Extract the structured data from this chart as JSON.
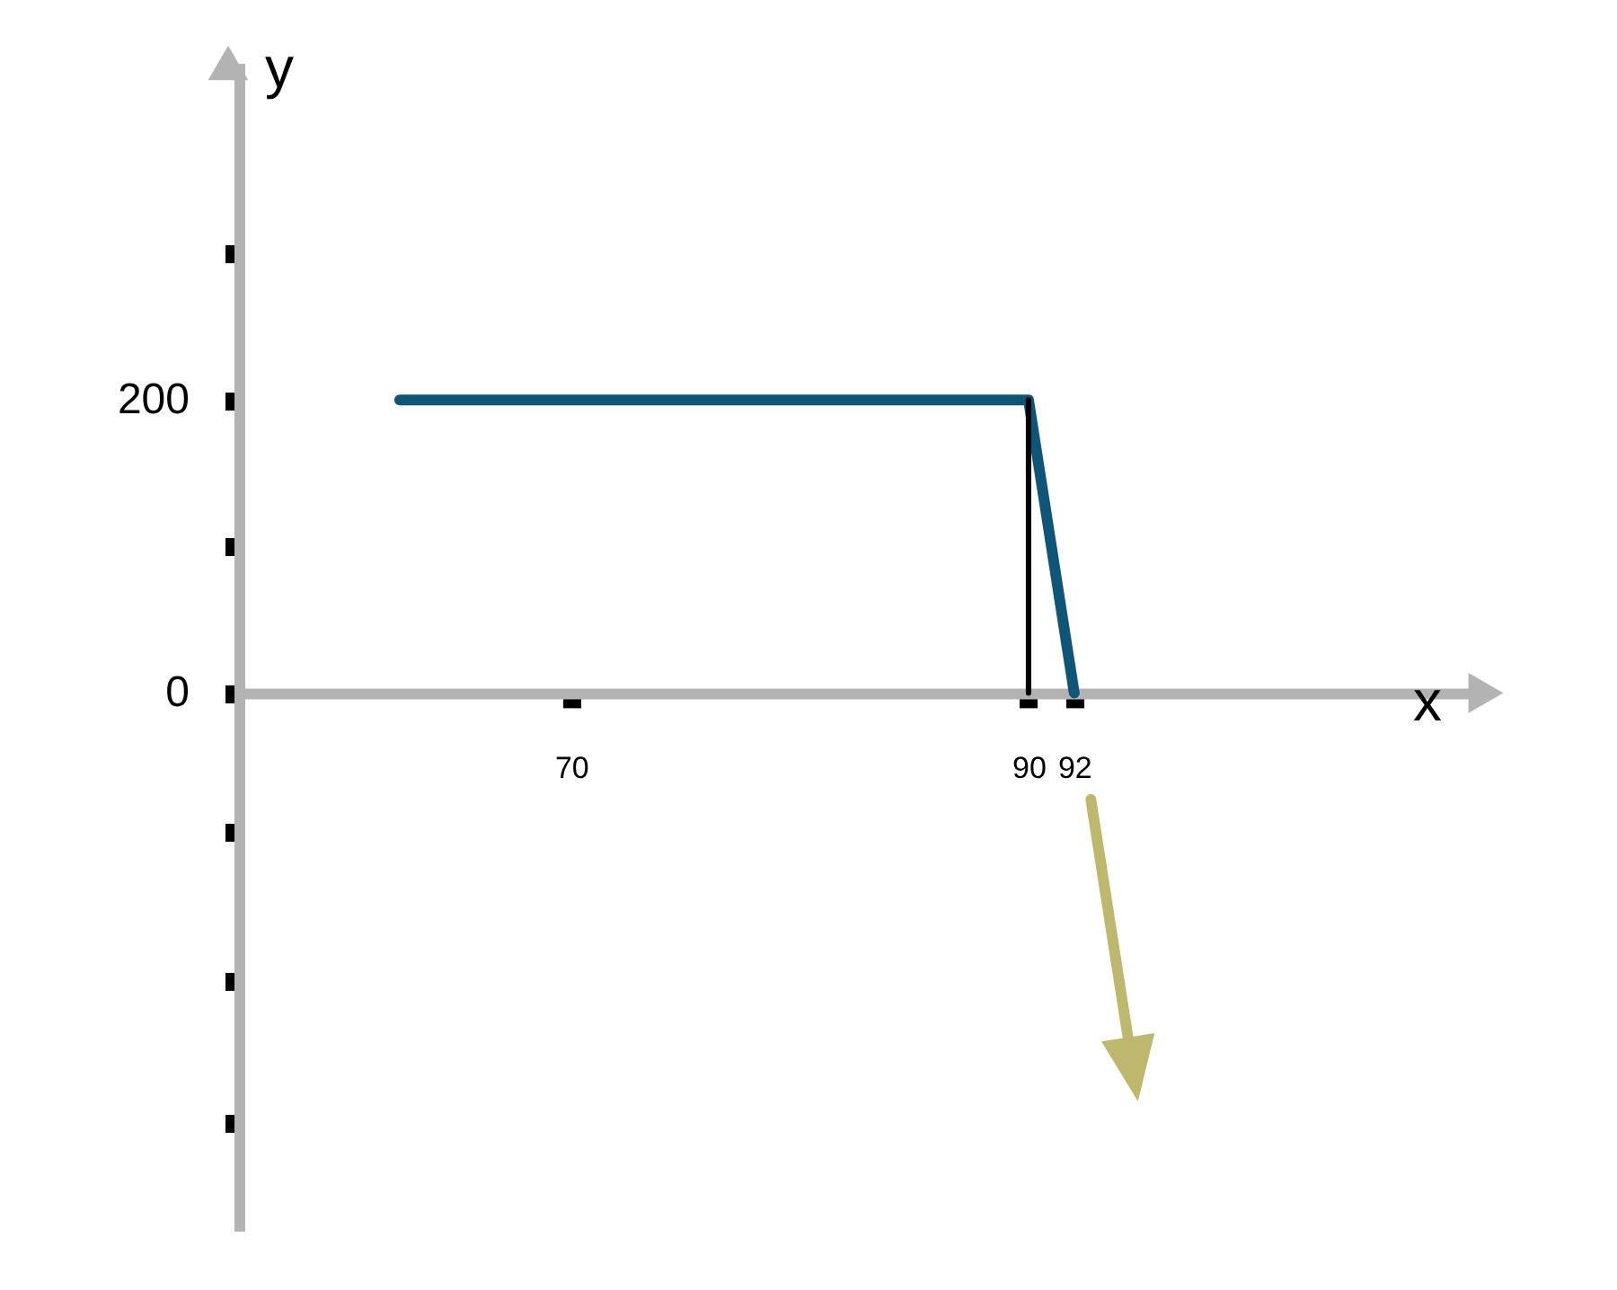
{
  "chart_data": {
    "type": "line",
    "xlabel": "x",
    "ylabel": "y",
    "xlim": [
      55,
      110
    ],
    "ylim": [
      -367,
      430
    ],
    "xticks": [
      70,
      90,
      92
    ],
    "yticks": [
      {
        "value": -293,
        "label": null
      },
      {
        "value": -196,
        "label": null
      },
      {
        "value": -95,
        "label": null
      },
      0,
      {
        "value": 100,
        "label": null
      },
      200,
      {
        "value": 300,
        "label": null
      }
    ],
    "series": [
      {
        "color": "#0e5577",
        "x": [
          62.5,
          90,
          92
        ],
        "values": [
          200,
          200,
          0
        ]
      },
      {
        "color": "#000000",
        "x": [
          90,
          90
        ],
        "values": [
          0,
          200
        ]
      }
    ],
    "grid": false,
    "legend": false,
    "marker": "none",
    "line_style": "solid"
  }
}
